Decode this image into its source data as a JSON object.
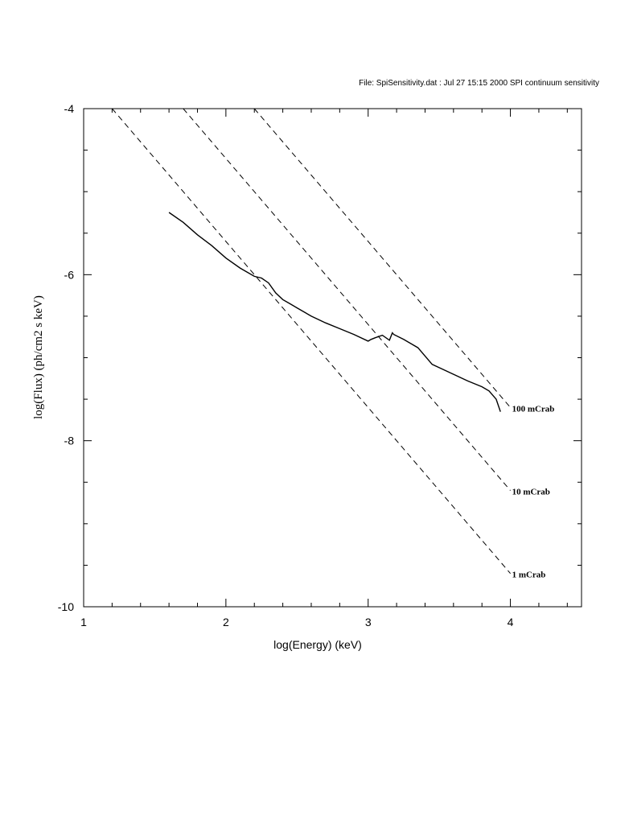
{
  "chart_data": {
    "type": "line",
    "header": "File: SpiSensitivity.dat : Jul 27 15:15 2000 SPI continuum sensitivity",
    "xlabel": "log(Energy)  (keV)",
    "ylabel": "log(Flux)      (ph/cm2 s keV)",
    "xlim": [
      1,
      4.5
    ],
    "ylim": [
      -10,
      -4
    ],
    "xticks": [
      1,
      2,
      3,
      4
    ],
    "yticks": [
      -10,
      -8,
      -6,
      -4
    ],
    "xtick_labels": [
      "1",
      "2",
      "3",
      "4"
    ],
    "ytick_labels": [
      "-10",
      "-8",
      "-6",
      "-4"
    ],
    "grid": false,
    "series": [
      {
        "style": "solid",
        "x": [
          1.6,
          1.7,
          1.8,
          1.9,
          2.0,
          2.1,
          2.2,
          2.25,
          2.3,
          2.35,
          2.4,
          2.45,
          2.5,
          2.6,
          2.7,
          2.8,
          2.9,
          3.0,
          3.02,
          3.05,
          3.1,
          3.15,
          3.17,
          3.18,
          3.25,
          3.35,
          3.45,
          3.5,
          3.6,
          3.7,
          3.8,
          3.85,
          3.9,
          3.93
        ],
        "y": [
          -5.25,
          -5.37,
          -5.52,
          -5.65,
          -5.8,
          -5.92,
          -6.02,
          -6.04,
          -6.1,
          -6.22,
          -6.3,
          -6.35,
          -6.4,
          -6.5,
          -6.58,
          -6.65,
          -6.72,
          -6.8,
          -6.78,
          -6.76,
          -6.73,
          -6.79,
          -6.7,
          -6.72,
          -6.78,
          -6.88,
          -7.08,
          -7.12,
          -7.2,
          -7.28,
          -7.35,
          -7.4,
          -7.5,
          -7.65
        ]
      },
      {
        "name": "100 mCrab",
        "style": "dashed",
        "x": [
          2.2,
          4.0
        ],
        "y": [
          -4.0,
          -7.6
        ]
      },
      {
        "name": "10 mCrab",
        "style": "dashed",
        "x": [
          1.7,
          4.0
        ],
        "y": [
          -4.0,
          -8.6
        ]
      },
      {
        "name": "1 mCrab",
        "style": "dashed",
        "x": [
          1.2,
          4.0
        ],
        "y": [
          -4.0,
          -9.6
        ]
      }
    ]
  }
}
